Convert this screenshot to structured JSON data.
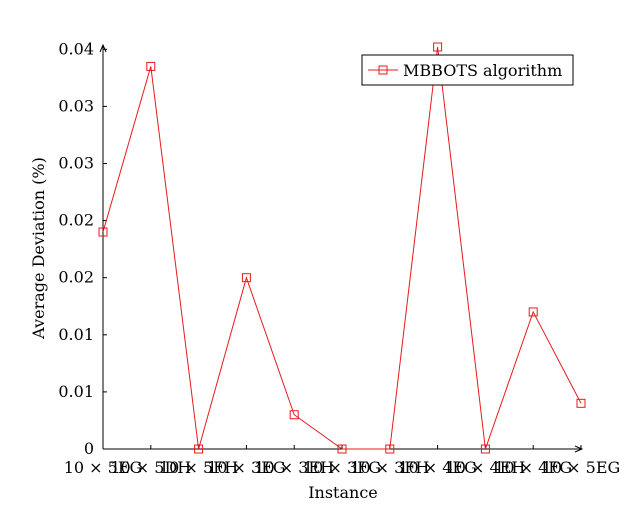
{
  "chart_data": {
    "type": "line",
    "title": "",
    "xlabel": "Instance",
    "ylabel": "Average Deviation (%)",
    "categories": [
      "10 × 5EG",
      "10 × 5DH",
      "10 × 5FH",
      "10 × 3EG",
      "10 × 3EH",
      "10 × 3FG",
      "10 × 3FH",
      "10 × 4EG",
      "10 × 4EH",
      "10 × 4FG",
      "10 × 5EG"
    ],
    "x_tick_labels": [
      "10 × 5EG",
      "10 × 5DH",
      "10 × 5FH",
      "10 × 3EG",
      "10 × 3EH",
      "10 × 3FG",
      "10 × 3FH",
      "10 × 4EG",
      "10 × 4EH",
      "10 × 4FG",
      "10 × 5EG"
    ],
    "series": [
      {
        "name": "MBBOTS algorithm",
        "color": "#e8191d",
        "marker": "square",
        "values": [
          0.019,
          0.0335,
          0,
          0.015,
          0.003,
          0,
          0,
          0.0352,
          0,
          0.012,
          0.004
        ]
      }
    ],
    "ylim": [
      0,
      0.0352
    ],
    "y_ticks": [
      0,
      0.005,
      0.01,
      0.015,
      0.02,
      0.025,
      0.03,
      0.035
    ],
    "y_tick_labels": [
      "0",
      "0.01",
      "0.01",
      "0.02",
      "0.02",
      "0.03",
      "0.03",
      "0.04"
    ],
    "grid": false,
    "legend_position": "top-right"
  }
}
